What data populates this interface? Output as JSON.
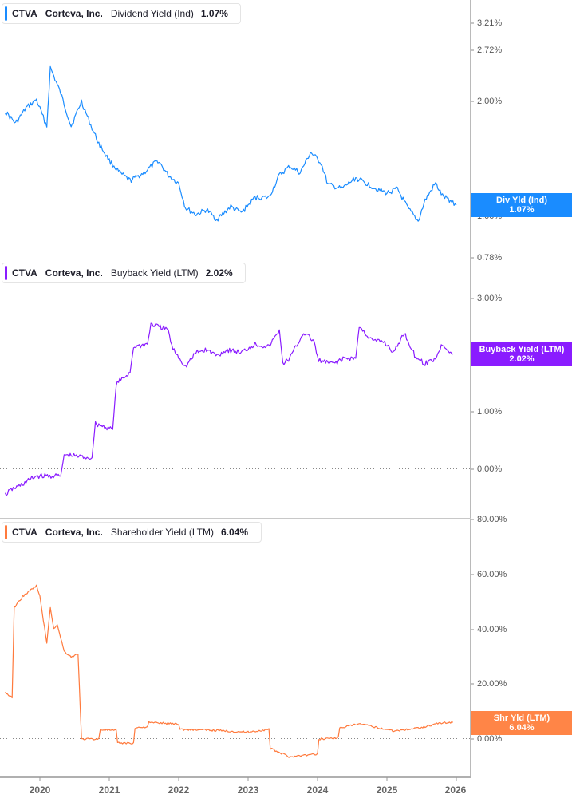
{
  "chart_data": [
    {
      "type": "line",
      "title": "CTVA Corteva, Inc. Dividend Yield (Ind)",
      "ticker": "CTVA",
      "company": "Corteva, Inc.",
      "metric": "Dividend Yield (Ind)",
      "current_value": "1.07%",
      "flag_label": "Div Yld (Ind)",
      "color": "#1a8cff",
      "yscale": "log",
      "y_ticks": [
        "3.21%",
        "2.72%",
        "2.00%",
        "1.00%",
        "0.78%"
      ],
      "x": [
        2019.5,
        2019.65,
        2019.8,
        2019.95,
        2020.1,
        2020.15,
        2020.3,
        2020.45,
        2020.6,
        2020.75,
        2020.85,
        2021.0,
        2021.15,
        2021.3,
        2021.5,
        2021.7,
        2021.85,
        2022.0,
        2022.1,
        2022.25,
        2022.4,
        2022.55,
        2022.75,
        2022.9,
        2023.1,
        2023.3,
        2023.45,
        2023.6,
        2023.75,
        2023.9,
        2024.05,
        2024.15,
        2024.35,
        2024.55,
        2024.7,
        2024.85,
        2025.0,
        2025.15,
        2025.3,
        2025.45,
        2025.55,
        2025.7,
        2025.8,
        2025.95,
        2026.0
      ],
      "values": [
        1.88,
        1.75,
        1.92,
        2.02,
        1.72,
        2.45,
        2.1,
        1.72,
        2.0,
        1.7,
        1.55,
        1.4,
        1.3,
        1.24,
        1.3,
        1.4,
        1.28,
        1.22,
        1.05,
        1.01,
        1.04,
        0.98,
        1.06,
        1.02,
        1.12,
        1.12,
        1.28,
        1.35,
        1.3,
        1.47,
        1.38,
        1.21,
        1.18,
        1.26,
        1.22,
        1.18,
        1.15,
        1.18,
        1.05,
        0.97,
        1.1,
        1.22,
        1.13,
        1.09,
        1.07
      ]
    },
    {
      "type": "line",
      "title": "CTVA Corteva, Inc. Buyback Yield (LTM)",
      "ticker": "CTVA",
      "company": "Corteva, Inc.",
      "metric": "Buyback Yield (LTM)",
      "current_value": "2.02%",
      "flag_label": "Buyback Yield (LTM)",
      "color": "#8a1cff",
      "y_ticks": [
        "3.00%",
        "2.00%",
        "1.00%",
        "0.00%"
      ],
      "x": [
        2019.5,
        2019.6,
        2019.7,
        2019.9,
        2019.95,
        2020.3,
        2020.35,
        2020.75,
        2020.8,
        2021.05,
        2021.1,
        2021.3,
        2021.35,
        2021.55,
        2021.6,
        2021.85,
        2021.9,
        2022.1,
        2022.25,
        2022.4,
        2022.55,
        2022.7,
        2022.9,
        2023.1,
        2023.3,
        2023.45,
        2023.5,
        2023.6,
        2023.8,
        2023.95,
        2024.0,
        2024.05,
        2024.2,
        2024.4,
        2024.55,
        2024.6,
        2024.8,
        2024.95,
        2025.1,
        2025.25,
        2025.4,
        2025.55,
        2025.7,
        2025.8,
        2025.95
      ],
      "values": [
        -0.45,
        -0.35,
        -0.3,
        -0.15,
        -0.12,
        -0.12,
        0.25,
        0.2,
        0.8,
        0.7,
        1.5,
        1.7,
        2.15,
        2.2,
        2.55,
        2.45,
        2.15,
        1.8,
        2.05,
        2.1,
        2.0,
        2.1,
        2.05,
        2.2,
        2.15,
        2.45,
        1.85,
        1.95,
        2.4,
        2.25,
        1.95,
        1.9,
        1.85,
        1.95,
        1.95,
        2.5,
        2.25,
        2.25,
        2.05,
        2.4,
        2.0,
        1.85,
        1.95,
        2.2,
        2.02
      ]
    },
    {
      "type": "line",
      "title": "CTVA Corteva, Inc. Shareholder Yield (LTM)",
      "ticker": "CTVA",
      "company": "Corteva, Inc.",
      "metric": "Shareholder Yield (LTM)",
      "current_value": "6.04%",
      "flag_label": "Shr Yld (LTM)",
      "color": "#ff7a3d",
      "y_ticks": [
        "80.00%",
        "60.00%",
        "40.00%",
        "20.00%",
        "0.00%"
      ],
      "x": [
        2019.5,
        2019.6,
        2019.63,
        2019.75,
        2019.9,
        2019.95,
        2020.0,
        2020.1,
        2020.15,
        2020.2,
        2020.25,
        2020.35,
        2020.45,
        2020.55,
        2020.6,
        2020.62,
        2020.85,
        2020.87,
        2021.1,
        2021.12,
        2021.35,
        2021.37,
        2021.55,
        2021.57,
        2022.0,
        2022.02,
        2022.5,
        2023.0,
        2023.3,
        2023.32,
        2023.55,
        2023.57,
        2024.0,
        2024.02,
        2024.3,
        2024.32,
        2024.6,
        2024.8,
        2025.1,
        2025.3,
        2025.55,
        2025.75,
        2025.95
      ],
      "values": [
        17,
        15,
        48,
        52,
        55,
        56,
        52,
        35,
        48,
        40,
        42,
        32,
        30,
        31,
        0,
        0,
        0,
        3.5,
        3,
        -1.5,
        -1.5,
        4,
        4.5,
        6,
        5.5,
        3.5,
        3.2,
        2.5,
        3.5,
        -3.5,
        -6,
        -6.5,
        -5.5,
        0,
        0.5,
        4,
        5.5,
        4.5,
        3,
        3.5,
        4.5,
        5.8,
        6.04
      ]
    }
  ],
  "x_axis": {
    "ticks": [
      "2020",
      "2021",
      "2022",
      "2023",
      "2024",
      "2025",
      "2026"
    ]
  }
}
